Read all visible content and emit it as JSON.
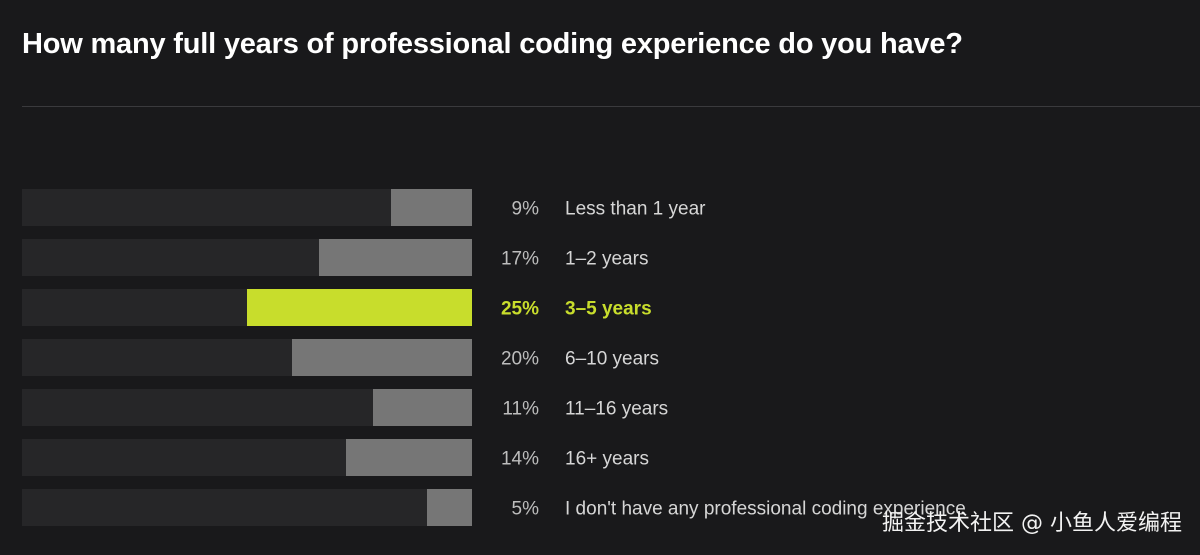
{
  "title": "How many full years of professional coding experience do you have?",
  "watermark": "掘金技术社区 @ 小鱼人爱编程",
  "colors": {
    "track": "#262628",
    "bar": "#767676",
    "highlight": "#c8dd2c"
  },
  "chart_data": {
    "type": "bar",
    "orientation": "horizontal",
    "unit": "%",
    "xlim": [
      0,
      100
    ],
    "highlight_category": "3–5 years",
    "categories": [
      "Less than 1 year",
      "1–2 years",
      "3–5 years",
      "6–10 years",
      "11–16 years",
      "16+ years",
      "I don't have any professional coding experience"
    ],
    "values": [
      9,
      17,
      25,
      20,
      11,
      14,
      5
    ],
    "value_labels": [
      "9%",
      "17%",
      "25%",
      "20%",
      "11%",
      "14%",
      "5%"
    ]
  }
}
